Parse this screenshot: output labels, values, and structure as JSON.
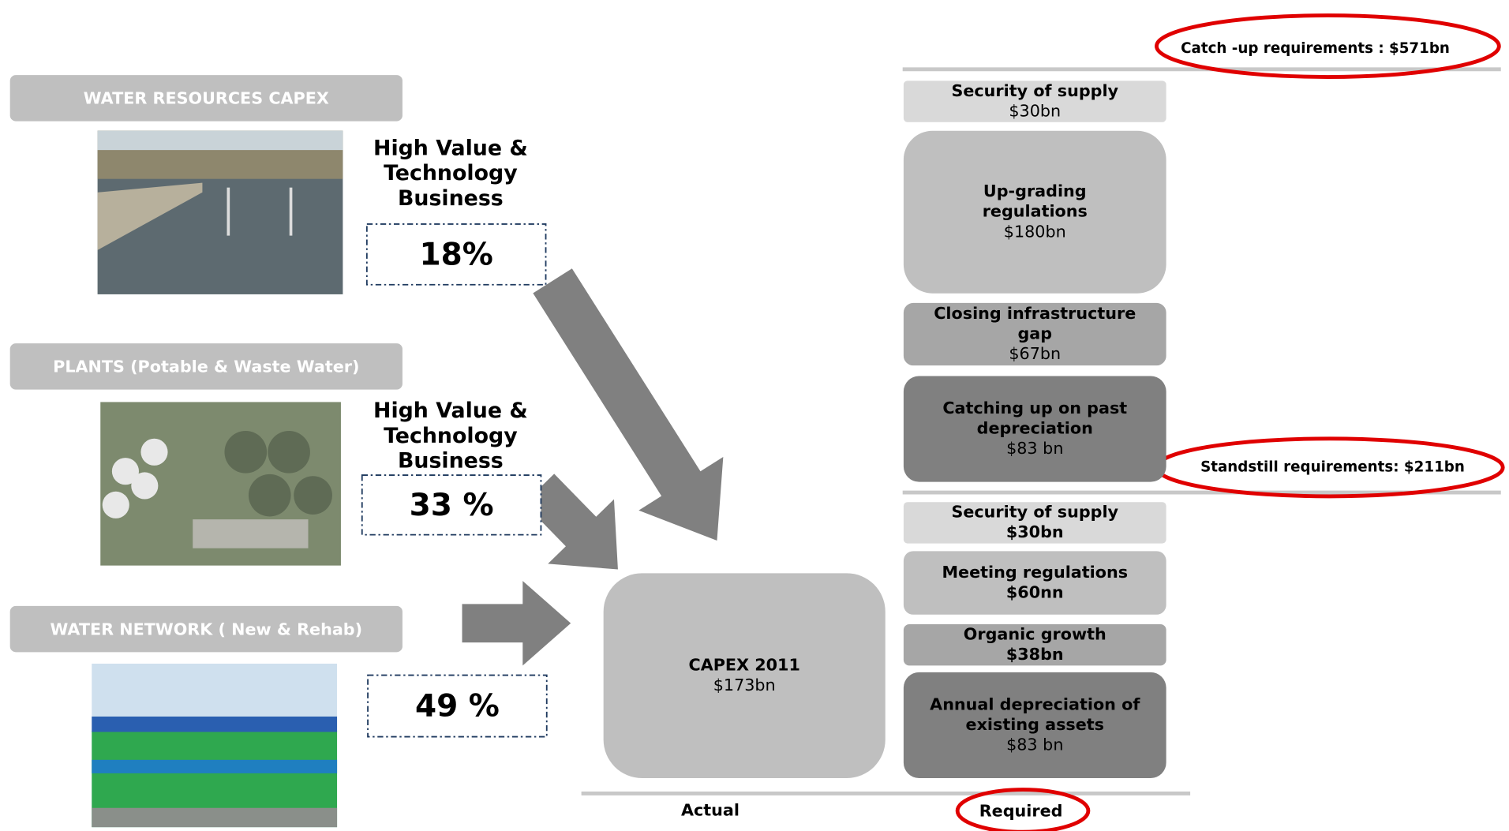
{
  "categories": [
    {
      "label": "WATER RESOURCES CAPEX",
      "heading_lines": [
        "High Value &",
        "Technology",
        "Business"
      ],
      "share": "18%"
    },
    {
      "label": "PLANTS (Potable & Waste Water)",
      "heading_lines": [
        "High Value &",
        "Technology",
        "Business"
      ],
      "share": "33 %"
    },
    {
      "label": "WATER NETWORK ( New & Rehab)",
      "share": "49 %"
    }
  ],
  "actual": {
    "title_lines": [
      "CAPEX 2011"
    ],
    "amount": "$173bn"
  },
  "required": [
    {
      "title_lines": [
        "Security of supply"
      ],
      "amount": "$30bn",
      "color": "#d9d9d9"
    },
    {
      "title_lines": [
        "Up-grading",
        "regulations"
      ],
      "amount": "$180bn",
      "color": "#bfbfbf"
    },
    {
      "title_lines": [
        "Closing infrastructure",
        "gap"
      ],
      "amount": "$67bn",
      "color": "#a6a6a6"
    },
    {
      "title_lines": [
        "Catching up on past",
        "depreciation"
      ],
      "amount": "$83 bn",
      "color": "#808080"
    },
    {
      "title_lines": [
        "Security of supply"
      ],
      "amount": "$30bn",
      "amount_bold": true,
      "color": "#d9d9d9"
    },
    {
      "title_lines": [
        "Meeting regulations"
      ],
      "amount": "$60nn",
      "amount_bold": true,
      "color": "#bfbfbf"
    },
    {
      "title_lines": [
        "Organic growth"
      ],
      "amount": "$38bn",
      "amount_bold": true,
      "color": "#a6a6a6"
    },
    {
      "title_lines": [
        "Annual depreciation of",
        "existing assets"
      ],
      "amount": "$83 bn",
      "color": "#808080"
    }
  ],
  "annotations": {
    "catch_up": "Catch -up requirements : $571bn",
    "standstill": "Standstill requirements: $211bn"
  },
  "columns": {
    "actual": "Actual",
    "required": "Required"
  }
}
